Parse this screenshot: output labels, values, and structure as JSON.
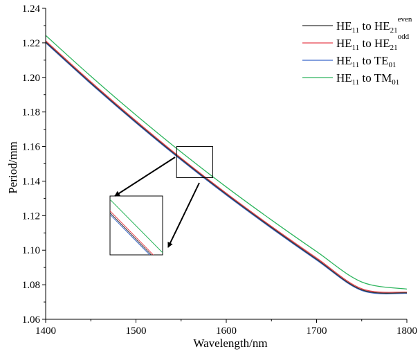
{
  "chart_data": {
    "type": "line",
    "title": "",
    "xlabel": "Wavelength/nm",
    "ylabel": "Period/mm",
    "xlim": [
      1400,
      1800
    ],
    "ylim": [
      1.06,
      1.24
    ],
    "xticks": [
      "1400",
      "1500",
      "1600",
      "1700",
      "1800"
    ],
    "yticks": [
      "1.06",
      "1.08",
      "1.10",
      "1.12",
      "1.14",
      "1.16",
      "1.18",
      "1.20",
      "1.22",
      "1.24"
    ],
    "grid": false,
    "legend_position": "top-right",
    "x": [
      1400,
      1450,
      1500,
      1550,
      1600,
      1650,
      1700,
      1750,
      1800
    ],
    "series": [
      {
        "name": "HE11 to HE21even",
        "legend": {
          "main": "HE",
          "sub1": "11",
          "mid": " to HE",
          "sub2": "21",
          "sup": "even"
        },
        "color": "#333333",
        "values": [
          1.2205,
          1.1968,
          1.1742,
          1.1527,
          1.1324,
          1.1132,
          1.0948,
          1.0771,
          1.0753
        ]
      },
      {
        "name": "HE11 to HE21odd",
        "legend": {
          "main": "HE",
          "sub1": "11",
          "mid": " to HE",
          "sub2": "21",
          "sup": "odd"
        },
        "color": "#e8424d",
        "values": [
          1.2212,
          1.1975,
          1.1749,
          1.1533,
          1.133,
          1.1138,
          1.0955,
          1.0777,
          1.0757
        ]
      },
      {
        "name": "HE11 to TE01",
        "legend": {
          "main": "HE",
          "sub1": "11",
          "mid": " to TE",
          "sub2": "01",
          "sup": ""
        },
        "color": "#3a67c9",
        "values": [
          1.22,
          1.1963,
          1.1737,
          1.1522,
          1.1319,
          1.1127,
          1.0943,
          1.0767,
          1.075
        ]
      },
      {
        "name": "HE11 to TM01",
        "legend": {
          "main": "HE",
          "sub1": "11",
          "mid": " to TM",
          "sub2": "01",
          "sup": ""
        },
        "color": "#2db55d",
        "values": [
          1.2243,
          1.2007,
          1.1782,
          1.1568,
          1.1366,
          1.1175,
          1.0992,
          1.0816,
          1.0775
        ]
      }
    ],
    "inset_region": {
      "x": [
        1545,
        1585
      ],
      "y": [
        1.142,
        1.16
      ]
    }
  }
}
